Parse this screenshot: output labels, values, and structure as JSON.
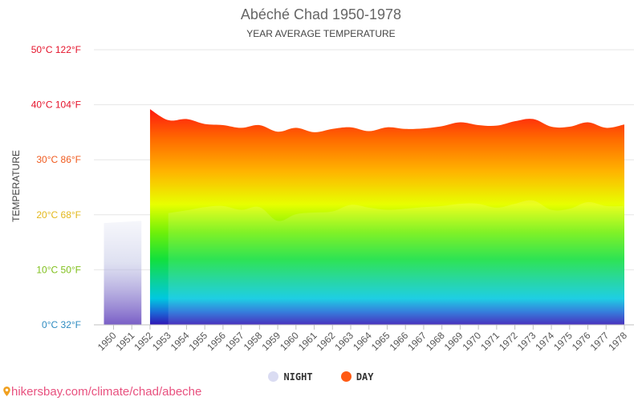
{
  "chart_data": {
    "type": "area",
    "title": "Abéché Chad 1950-1978",
    "subtitle": "YEAR AVERAGE TEMPERATURE",
    "ylabel": "TEMPERATURE",
    "xlabel": "",
    "ylim": [
      0,
      50
    ],
    "y_ticks": [
      {
        "value": 0,
        "label": "0°C 32°F",
        "color": "#2e8bc0"
      },
      {
        "value": 10,
        "label": "10°C 50°F",
        "color": "#7fbf1a"
      },
      {
        "value": 20,
        "label": "20°C 68°F",
        "color": "#e3b81c"
      },
      {
        "value": 30,
        "label": "30°C 86°F",
        "color": "#f05a1e"
      },
      {
        "value": 40,
        "label": "40°C 104°F",
        "color": "#e5132b"
      },
      {
        "value": 50,
        "label": "50°C 122°F",
        "color": "#e5132b"
      }
    ],
    "categories": [
      "1950",
      "1951",
      "1952",
      "1953",
      "1954",
      "1955",
      "1956",
      "1957",
      "1958",
      "1959",
      "1960",
      "1961",
      "1962",
      "1963",
      "1964",
      "1965",
      "1966",
      "1967",
      "1968",
      "1969",
      "1970",
      "1971",
      "1972",
      "1973",
      "1974",
      "1975",
      "1976",
      "1977",
      "1978"
    ],
    "series": [
      {
        "name": "NIGHT",
        "color": "#dadcf2",
        "values": [
          18.5,
          18.9,
          null,
          20.3,
          20.8,
          21.4,
          21.6,
          20.9,
          21.4,
          18.9,
          20.1,
          20.4,
          20.6,
          21.8,
          21.3,
          20.9,
          21.1,
          21.4,
          21.6,
          22.0,
          22.0,
          21.3,
          22.0,
          22.6,
          20.9,
          21.1,
          22.3,
          21.6,
          21.6
        ]
      },
      {
        "name": "DAY",
        "color": "#ff5a14",
        "values": [
          null,
          null,
          39.2,
          37.2,
          37.4,
          36.5,
          36.3,
          35.8,
          36.3,
          35.1,
          35.8,
          35.0,
          35.6,
          35.9,
          35.2,
          35.9,
          35.6,
          35.7,
          36.1,
          36.8,
          36.3,
          36.2,
          37.0,
          37.4,
          36.0,
          36.0,
          36.8,
          35.8,
          36.4
        ]
      }
    ],
    "grid": true,
    "legend_position": "bottom"
  },
  "source": {
    "text": "hikersbay.com/climate/chad/abeche",
    "icon": "pin-icon"
  }
}
